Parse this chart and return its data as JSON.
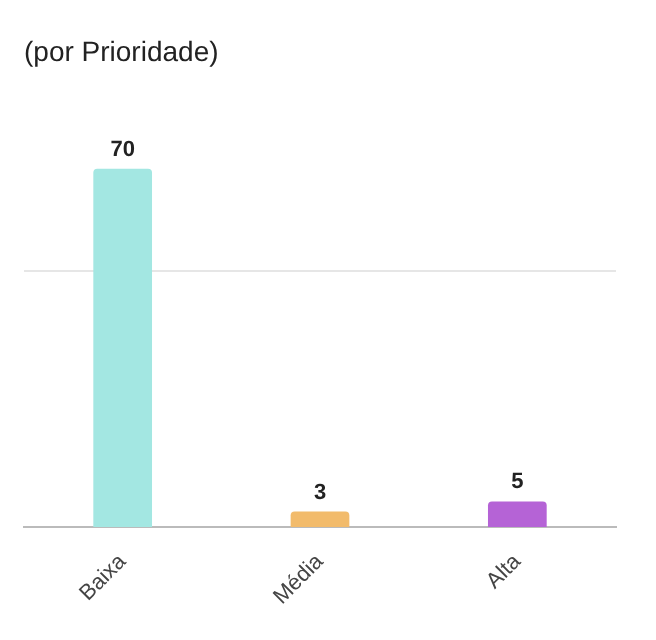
{
  "chart_data": {
    "type": "bar",
    "title": "(por Prioridade)",
    "categories": [
      "Baixa",
      "Média",
      "Alta"
    ],
    "values": [
      70,
      3,
      5
    ],
    "colors": [
      "#a3e7e2",
      "#f2bb6b",
      "#b563d6"
    ],
    "ref_lines": [
      {
        "axis": "y",
        "value": 50,
        "color": "#e6e6e6"
      }
    ],
    "data_labels": true
  }
}
